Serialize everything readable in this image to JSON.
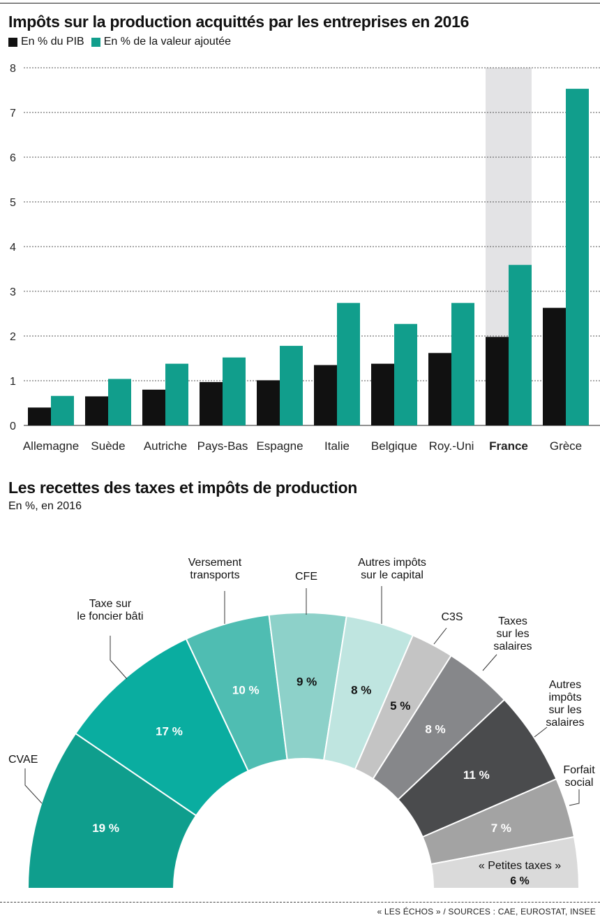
{
  "chart_data": [
    {
      "type": "bar",
      "title": "Impôts sur la production acquittés par les entreprises en 2016",
      "categories": [
        "Allemagne",
        "Suède",
        "Autriche",
        "Pays-Bas",
        "Espagne",
        "Italie",
        "Belgique",
        "Roy.-Uni",
        "France",
        "Grèce"
      ],
      "highlighted_category": "France",
      "series": [
        {
          "name": "En % du PIB",
          "color": "#111111",
          "values": [
            0.4,
            0.65,
            0.8,
            0.97,
            1.01,
            1.35,
            1.38,
            1.62,
            1.98,
            2.63
          ]
        },
        {
          "name": "En % de la valeur ajoutée",
          "color": "#119e8c",
          "values": [
            0.66,
            1.04,
            1.38,
            1.52,
            1.78,
            2.74,
            2.27,
            2.74,
            3.59,
            7.53
          ]
        }
      ],
      "ylim": [
        0,
        8
      ],
      "yticks": [
        "0",
        "1",
        "2",
        "3",
        "4",
        "5",
        "6",
        "7",
        "8"
      ],
      "grid": true,
      "legend_position": "top-left"
    },
    {
      "type": "pie",
      "variant": "semicircle-donut",
      "title": "Les recettes des taxes et impôts de production",
      "subtitle": "En %, en 2016",
      "slices": [
        {
          "label": "CVAE",
          "value": 19,
          "value_label": "19 %",
          "color": "#0f9e8d",
          "text_color": "#ffffff"
        },
        {
          "label": "Taxe sur le foncier bâti",
          "value": 17,
          "value_label": "17 %",
          "color": "#0aada0",
          "text_color": "#ffffff"
        },
        {
          "label": "Versement transports",
          "value": 10,
          "value_label": "10 %",
          "color": "#4fbdb2",
          "text_color": "#ffffff"
        },
        {
          "label": "CFE",
          "value": 9,
          "value_label": "9 %",
          "color": "#8dd1c9",
          "text_color": "#111111"
        },
        {
          "label": "Autres impôts sur le capital",
          "value": 8,
          "value_label": "8 %",
          "color": "#bfe5e0",
          "text_color": "#111111"
        },
        {
          "label": "C3S",
          "value": 5,
          "value_label": "5 %",
          "color": "#c4c4c4",
          "text_color": "#111111"
        },
        {
          "label": "Taxes sur les salaires",
          "value": 8,
          "value_label": "8 %",
          "color": "#86878a",
          "text_color": "#ffffff"
        },
        {
          "label": "Autres impôts sur les salaires",
          "value": 11,
          "value_label": "11 %",
          "color": "#4a4b4d",
          "text_color": "#ffffff"
        },
        {
          "label": "Forfait social",
          "value": 7,
          "value_label": "7 %",
          "color": "#a3a3a3",
          "text_color": "#ffffff"
        },
        {
          "label": "« Petites taxes »",
          "value": 6,
          "value_label": "6 %",
          "color": "#dadada",
          "text_color": "#111111"
        }
      ]
    }
  ],
  "source": "« LES ÉCHOS » / SOURCES : CAE, EUROSTAT, INSEE"
}
